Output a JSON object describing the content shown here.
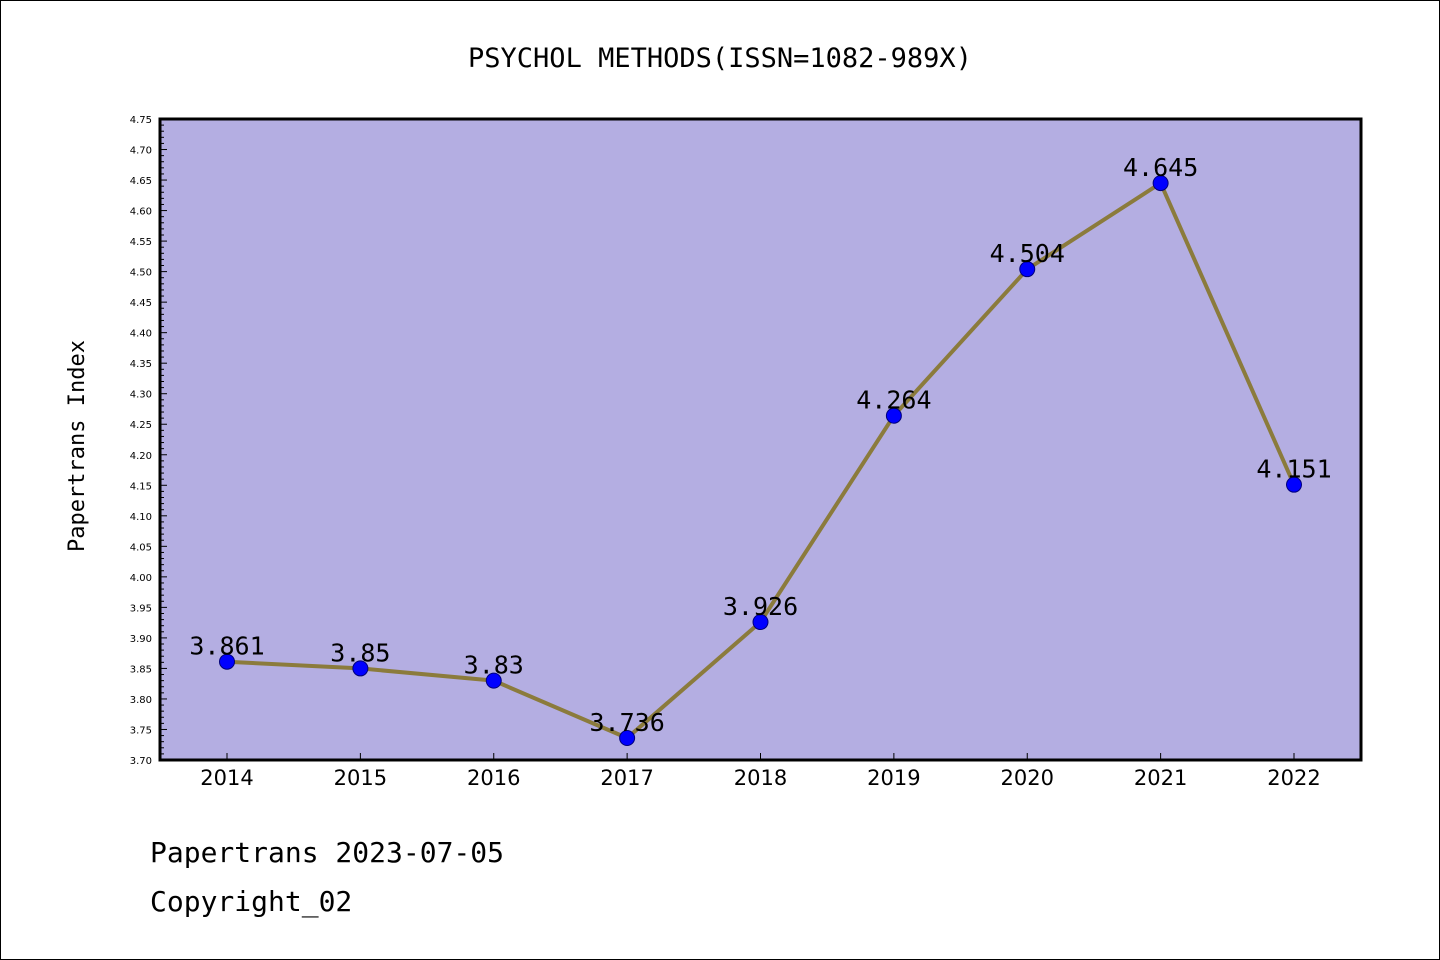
{
  "chart_data": {
    "type": "line",
    "title": "PSYCHOL METHODS(ISSN=1082-989X)",
    "xlabel": "",
    "ylabel": "Papertrans Index",
    "categories": [
      "2014",
      "2015",
      "2016",
      "2017",
      "2018",
      "2019",
      "2020",
      "2021",
      "2022"
    ],
    "values": [
      3.861,
      3.85,
      3.83,
      3.736,
      3.926,
      4.264,
      4.504,
      4.645,
      4.151
    ],
    "data_labels": [
      "3.861",
      "3.85",
      "3.83",
      "3.736",
      "3.926",
      "4.264",
      "4.504",
      "4.645",
      "4.151"
    ],
    "ylim": [
      3.7,
      4.75
    ],
    "yticks": [
      "3.70",
      "3.75",
      "3.80",
      "3.85",
      "3.90",
      "3.95",
      "4.00",
      "4.05",
      "4.10",
      "4.15",
      "4.20",
      "4.25",
      "4.30",
      "4.35",
      "4.40",
      "4.45",
      "4.50",
      "4.55",
      "4.60",
      "4.65",
      "4.70",
      "4.75"
    ],
    "grid": false,
    "legend": "none",
    "colors": {
      "plot_background": "#b4aee2",
      "line": "#8b7b3c",
      "marker": "#0000ff"
    }
  },
  "footer": {
    "date_line": "Papertrans 2023-07-05",
    "copyright_line": "Copyright_02"
  }
}
